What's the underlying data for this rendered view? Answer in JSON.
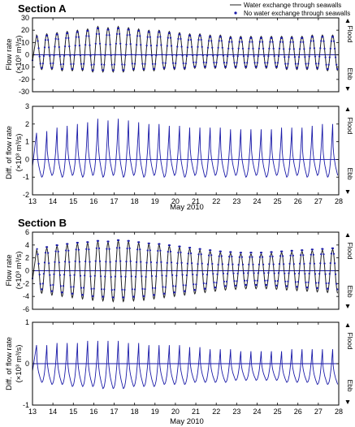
{
  "legend": {
    "line_label": "Water exchange through seawalls",
    "dots_label": "No water exchange through seawalls"
  },
  "colors": {
    "line": "#222222",
    "dots": "#1a1aa8",
    "zero": "#1a1aa8",
    "axes": "#000000"
  },
  "sections": [
    {
      "title": "Section A"
    },
    {
      "title": "Section B"
    }
  ],
  "panel_labels": {
    "flow_ylabel_1": "Flow rate",
    "flow_ylabel_2": "(×10³ m³/s)",
    "diff_ylabel_1": "Diff. of flow rate",
    "diff_ylabel_2": "(×10³ m³/s)",
    "flood": "Flood",
    "ebb": "Ebb",
    "xlabel": "May 2010"
  },
  "chart_data": [
    {
      "type": "line",
      "title": "Section A",
      "ylabel": "Flow rate (×10³ m³/s)",
      "xlim": [
        13,
        28
      ],
      "ylim": [
        -30,
        30
      ],
      "yticks": [
        -30,
        -20,
        -10,
        0,
        10,
        20,
        30
      ],
      "xticks": [
        13,
        14,
        15,
        16,
        17,
        18,
        19,
        20,
        21,
        22,
        23,
        24,
        25,
        26,
        27,
        28
      ],
      "x_tick_labels_shown": false,
      "x": [
        13.2,
        13.7,
        14.2,
        14.7,
        15.2,
        15.7,
        16.2,
        16.7,
        17.2,
        17.7,
        18.2,
        18.7,
        19.2,
        19.7,
        20.2,
        20.7,
        21.2,
        21.7,
        22.2,
        22.7,
        23.2,
        23.7,
        24.2,
        24.7,
        25.2,
        25.7,
        26.2,
        26.7,
        27.2,
        27.7
      ],
      "series": [
        {
          "name": "Water exchange through seawalls",
          "style": "line",
          "peaks": [
            16,
            17,
            18,
            19,
            20,
            21,
            23,
            22,
            23,
            22,
            21,
            20,
            20,
            19,
            18,
            17,
            17,
            16,
            16,
            15,
            15,
            15,
            15,
            15,
            15,
            15,
            15,
            16,
            16,
            16
          ],
          "troughs": [
            -12,
            -12,
            -13,
            -13,
            -13,
            -14,
            -14,
            -14,
            -14,
            -13,
            -13,
            -13,
            -12,
            -12,
            -12,
            -11,
            -11,
            -11,
            -11,
            -11,
            -11,
            -11,
            -11,
            -11,
            -12,
            -12,
            -12,
            -12,
            -13,
            -13
          ]
        },
        {
          "name": "No water exchange through seawalls",
          "style": "dots",
          "peaks": [
            15,
            16,
            17,
            18,
            19,
            20,
            22,
            21,
            22,
            21,
            20,
            19,
            19,
            18,
            17,
            16,
            16,
            15,
            15,
            14,
            14,
            14,
            14,
            14,
            14,
            14,
            14,
            15,
            15,
            15
          ],
          "troughs": [
            -11,
            -11,
            -12,
            -12,
            -12,
            -13,
            -13,
            -13,
            -13,
            -12,
            -12,
            -12,
            -11,
            -11,
            -11,
            -10,
            -10,
            -10,
            -10,
            -10,
            -10,
            -10,
            -10,
            -10,
            -11,
            -11,
            -11,
            -11,
            -12,
            -12
          ]
        }
      ]
    },
    {
      "type": "line",
      "title": "",
      "ylabel": "Diff. of flow rate (×10³ m³/s)",
      "xlabel": "May 2010",
      "xlim": [
        13,
        28
      ],
      "ylim": [
        -2,
        3
      ],
      "yticks": [
        -2,
        -1,
        0,
        1,
        2,
        3
      ],
      "xticks": [
        13,
        14,
        15,
        16,
        17,
        18,
        19,
        20,
        21,
        22,
        23,
        24,
        25,
        26,
        27,
        28
      ],
      "x": [
        13.2,
        13.7,
        14.2,
        14.7,
        15.2,
        15.7,
        16.2,
        16.7,
        17.2,
        17.7,
        18.2,
        18.7,
        19.2,
        19.7,
        20.2,
        20.7,
        21.2,
        21.7,
        22.2,
        22.7,
        23.2,
        23.7,
        24.2,
        24.7,
        25.2,
        25.7,
        26.2,
        26.7,
        27.2,
        27.7
      ],
      "series": [
        {
          "name": "",
          "style": "line",
          "peaks": [
            1.5,
            1.6,
            1.8,
            1.9,
            2.0,
            2.1,
            2.3,
            2.2,
            2.3,
            2.2,
            2.1,
            2.0,
            2.0,
            1.9,
            1.9,
            1.8,
            1.8,
            1.8,
            1.8,
            1.7,
            1.7,
            1.7,
            1.7,
            1.7,
            1.8,
            1.8,
            1.8,
            1.9,
            2.0,
            2.0
          ],
          "troughs": [
            -1.0,
            -0.9,
            -1.0,
            -0.9,
            -1.0,
            -0.9,
            -1.0,
            -0.9,
            -1.0,
            -0.9,
            -1.0,
            -0.9,
            -1.0,
            -0.9,
            -1.0,
            -0.9,
            -1.0,
            -0.9,
            -1.0,
            -0.9,
            -1.0,
            -0.9,
            -1.0,
            -0.9,
            -1.0,
            -0.9,
            -1.0,
            -0.9,
            -1.0,
            -0.9
          ]
        }
      ]
    },
    {
      "type": "line",
      "title": "Section B",
      "ylabel": "Flow rate (×10³ m³/s)",
      "xlim": [
        13,
        28
      ],
      "ylim": [
        -6,
        6
      ],
      "yticks": [
        -6,
        -4,
        -2,
        0,
        2,
        4,
        6
      ],
      "xticks": [
        13,
        14,
        15,
        16,
        17,
        18,
        19,
        20,
        21,
        22,
        23,
        24,
        25,
        26,
        27,
        28
      ],
      "x_tick_labels_shown": false,
      "x": [
        13.2,
        13.7,
        14.2,
        14.7,
        15.2,
        15.7,
        16.2,
        16.7,
        17.2,
        17.7,
        18.2,
        18.7,
        19.2,
        19.7,
        20.2,
        20.7,
        21.2,
        21.7,
        22.2,
        22.7,
        23.2,
        23.7,
        24.2,
        24.7,
        25.2,
        25.7,
        26.2,
        26.7,
        27.2,
        27.7
      ],
      "series": [
        {
          "name": "Water exchange through seawalls",
          "style": "line",
          "peaks": [
            3.2,
            3.5,
            3.8,
            4.0,
            4.2,
            4.3,
            4.5,
            4.4,
            4.6,
            4.5,
            4.3,
            4.1,
            4.0,
            3.8,
            3.6,
            3.4,
            3.2,
            3.0,
            2.8,
            2.7,
            2.6,
            2.6,
            2.6,
            2.7,
            2.8,
            2.9,
            3.0,
            3.1,
            3.2,
            3.3
          ],
          "troughs": [
            -3.5,
            -3.8,
            -4.0,
            -4.2,
            -4.4,
            -4.6,
            -4.7,
            -4.8,
            -4.8,
            -4.7,
            -4.6,
            -4.4,
            -4.2,
            -4.0,
            -3.8,
            -3.6,
            -3.4,
            -3.2,
            -3.0,
            -2.9,
            -2.8,
            -2.8,
            -2.8,
            -2.9,
            -3.0,
            -3.1,
            -3.2,
            -3.3,
            -3.4,
            -3.5
          ]
        },
        {
          "name": "No water exchange through seawalls",
          "style": "dots",
          "peaks": [
            3.5,
            3.8,
            4.1,
            4.3,
            4.5,
            4.6,
            4.8,
            4.7,
            4.9,
            4.8,
            4.6,
            4.4,
            4.3,
            4.1,
            3.9,
            3.7,
            3.5,
            3.3,
            3.1,
            3.0,
            2.9,
            2.9,
            2.9,
            3.0,
            3.1,
            3.2,
            3.3,
            3.4,
            3.5,
            3.6
          ],
          "troughs": [
            -3.0,
            -3.3,
            -3.5,
            -3.7,
            -3.9,
            -4.1,
            -4.2,
            -4.3,
            -4.3,
            -4.2,
            -4.1,
            -3.9,
            -3.7,
            -3.5,
            -3.3,
            -3.1,
            -2.9,
            -2.7,
            -2.5,
            -2.4,
            -2.3,
            -2.3,
            -2.3,
            -2.4,
            -2.5,
            -2.6,
            -2.7,
            -2.8,
            -2.9,
            -3.0
          ]
        }
      ]
    },
    {
      "type": "line",
      "title": "",
      "ylabel": "Diff. of flow rate (×10³ m³/s)",
      "xlabel": "May 2010",
      "xlim": [
        13,
        28
      ],
      "ylim": [
        -1,
        1
      ],
      "yticks": [
        -1,
        0,
        1
      ],
      "xticks": [
        13,
        14,
        15,
        16,
        17,
        18,
        19,
        20,
        21,
        22,
        23,
        24,
        25,
        26,
        27,
        28
      ],
      "x": [
        13.2,
        13.7,
        14.2,
        14.7,
        15.2,
        15.7,
        16.2,
        16.7,
        17.2,
        17.7,
        18.2,
        18.7,
        19.2,
        19.7,
        20.2,
        20.7,
        21.2,
        21.7,
        22.2,
        22.7,
        23.2,
        23.7,
        24.2,
        24.7,
        25.2,
        25.7,
        26.2,
        26.7,
        27.2,
        27.7
      ],
      "series": [
        {
          "name": "",
          "style": "line",
          "peaks": [
            0.45,
            0.45,
            0.5,
            0.5,
            0.5,
            0.55,
            0.55,
            0.55,
            0.55,
            0.5,
            0.5,
            0.45,
            0.45,
            0.45,
            0.45,
            0.4,
            0.4,
            0.35,
            0.35,
            0.35,
            0.3,
            0.3,
            0.3,
            0.3,
            0.3,
            0.35,
            0.35,
            0.35,
            0.35,
            0.35
          ],
          "troughs": [
            -0.45,
            -0.5,
            -0.5,
            -0.55,
            -0.55,
            -0.55,
            -0.6,
            -0.6,
            -0.6,
            -0.55,
            -0.55,
            -0.55,
            -0.5,
            -0.5,
            -0.5,
            -0.45,
            -0.45,
            -0.45,
            -0.45,
            -0.4,
            -0.4,
            -0.4,
            -0.4,
            -0.4,
            -0.45,
            -0.45,
            -0.45,
            -0.5,
            -0.5,
            -0.5
          ]
        }
      ]
    }
  ]
}
